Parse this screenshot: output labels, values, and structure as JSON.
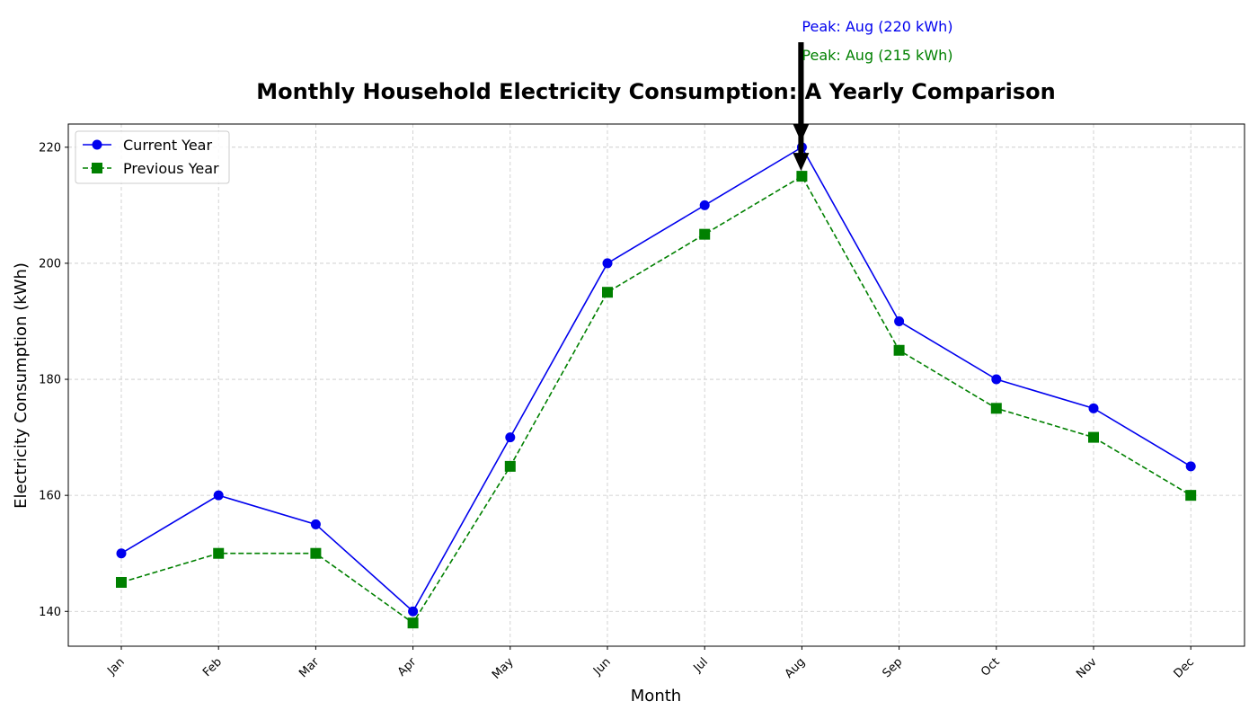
{
  "chart_data": {
    "type": "line",
    "title": "Monthly Household Electricity Consumption: A Yearly Comparison",
    "xlabel": "Month",
    "ylabel": "Electricity Consumption (kWh)",
    "categories": [
      "Jan",
      "Feb",
      "Mar",
      "Apr",
      "May",
      "Jun",
      "Jul",
      "Aug",
      "Sep",
      "Oct",
      "Nov",
      "Dec"
    ],
    "ylim": [
      134,
      224
    ],
    "yticks": [
      140,
      160,
      180,
      200,
      220
    ],
    "grid": true,
    "legend_placement": "top-left",
    "series": [
      {
        "name": "Current Year",
        "values": [
          150,
          160,
          155,
          140,
          170,
          200,
          210,
          220,
          190,
          180,
          175,
          165
        ],
        "color": "#0000ee",
        "marker": "circle",
        "line_style": "solid"
      },
      {
        "name": "Previous Year",
        "values": [
          145,
          150,
          150,
          138,
          165,
          195,
          205,
          215,
          185,
          175,
          170,
          160
        ],
        "color": "#008000",
        "marker": "square",
        "line_style": "dashed"
      }
    ],
    "annotations": [
      {
        "text": "Peak: Aug (220 kWh)",
        "category": "Aug",
        "value": 220,
        "color": "#0000ee"
      },
      {
        "text": "Peak: Aug (215 kWh)",
        "category": "Aug",
        "value": 215,
        "color": "#008000"
      }
    ]
  }
}
